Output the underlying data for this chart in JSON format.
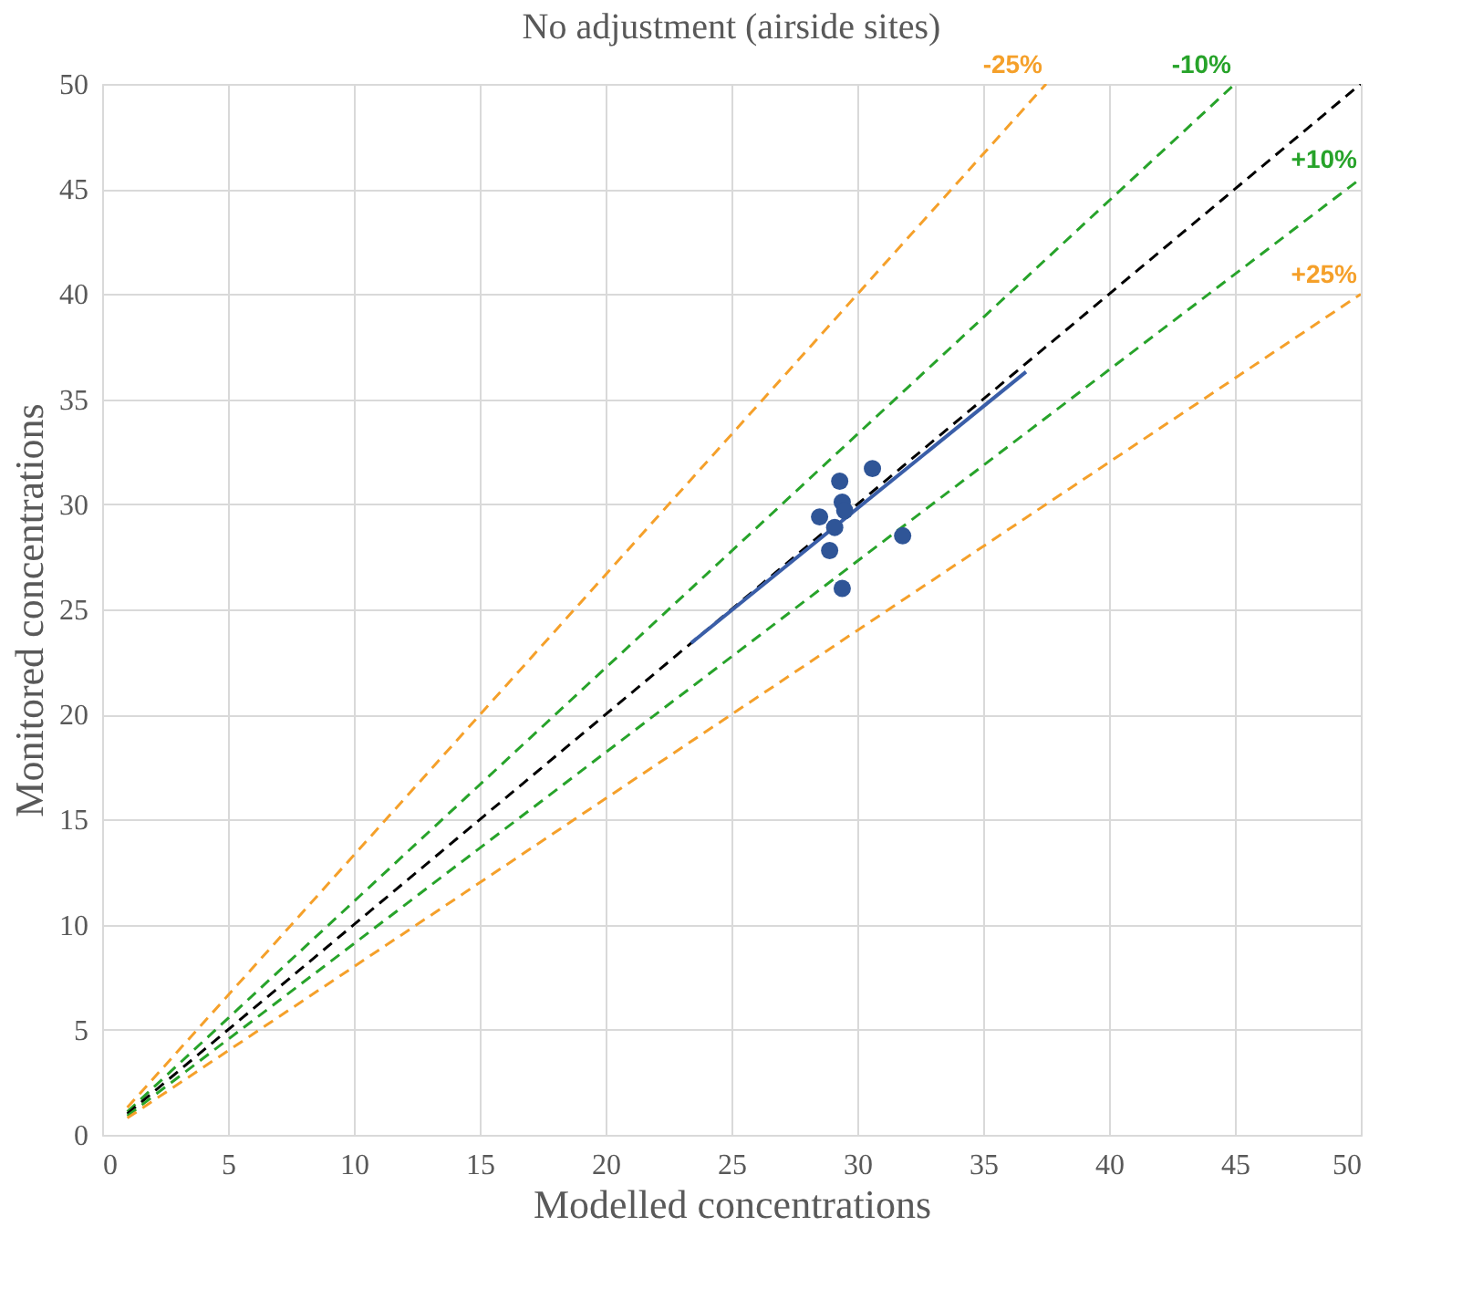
{
  "chart_data": {
    "type": "scatter",
    "title": "No adjustment (airside sites)",
    "xlabel": "Modelled concentrations",
    "ylabel": "Monitored concentrations",
    "xlim": [
      0,
      50
    ],
    "ylim": [
      0,
      50
    ],
    "xticks": [
      0,
      5,
      10,
      15,
      20,
      25,
      30,
      35,
      40,
      45,
      50
    ],
    "yticks": [
      0,
      5,
      10,
      15,
      20,
      25,
      30,
      35,
      40,
      45,
      50
    ],
    "grid": true,
    "series": [
      {
        "type": "line",
        "name": "-25%",
        "color": "#f5a02a",
        "line_style": "dashed",
        "marker": "none",
        "x": [
          1,
          37.5
        ],
        "values": [
          1.3,
          50
        ]
      },
      {
        "type": "line",
        "name": "-10%",
        "color": "#27a32a",
        "line_style": "dashed",
        "marker": "none",
        "x": [
          1,
          45
        ],
        "values": [
          1.1,
          50
        ]
      },
      {
        "type": "line",
        "color": "#000000",
        "line_style": "dashed",
        "marker": "none",
        "x": [
          1,
          50
        ],
        "values": [
          1,
          50
        ]
      },
      {
        "type": "line",
        "name": "+10%",
        "color": "#27a32a",
        "line_style": "dashed",
        "marker": "none",
        "x": [
          1,
          50
        ],
        "values": [
          0.9,
          45.5
        ]
      },
      {
        "type": "line",
        "name": "+25%",
        "color": "#f5a02a",
        "line_style": "dashed",
        "marker": "none",
        "x": [
          1,
          50
        ],
        "values": [
          0.8,
          40
        ]
      },
      {
        "type": "line",
        "color": "#3a5ea8",
        "line_style": "solid",
        "marker": "none",
        "x": [
          23.4,
          36.7
        ],
        "values": [
          23.4,
          36.3
        ]
      },
      {
        "color": "#2f5597",
        "marker": "circle",
        "x": [
          30.6,
          29.3,
          29.4,
          29.5,
          28.5,
          29.1,
          28.9,
          31.8,
          29.4
        ],
        "values": [
          31.7,
          31.1,
          30.1,
          29.7,
          29.4,
          28.9,
          27.8,
          28.5,
          26.0
        ]
      }
    ]
  }
}
